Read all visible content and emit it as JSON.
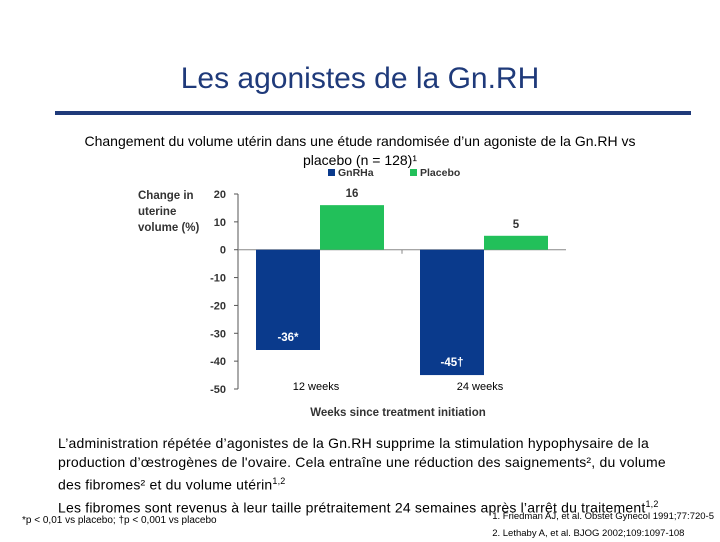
{
  "slide": {
    "title": "Les agonistes de la Gn.RH",
    "subtitle": "Changement du volume utérin dans une étude randomisée d’un agoniste de la Gn.RH vs placebo (n = 128)¹"
  },
  "chart_data": {
    "type": "bar",
    "categories": [
      "12 weeks",
      "24 weeks"
    ],
    "series": [
      {
        "name": "GnRHa",
        "values": [
          -36,
          -45
        ],
        "labels": [
          "-36*",
          "-45†"
        ],
        "color": "#0a3a8c"
      },
      {
        "name": "Placebo",
        "values": [
          16,
          5
        ],
        "labels": [
          "16",
          "5"
        ],
        "color": "#22c05a"
      }
    ],
    "ylabel_lines": [
      "Change in",
      "uterine",
      "volume (%)"
    ],
    "xlabel": "Weeks since treatment initiation",
    "ylim": [
      -50,
      20
    ],
    "yticks": [
      20,
      10,
      0,
      -10,
      -20,
      -30,
      -40,
      -50
    ],
    "legend_position": "top",
    "grid": false
  },
  "body": {
    "line1": "L’administration répétée d’agonistes de la Gn.RH supprime la stimulation hypophysaire de la",
    "line2": "production d’œstrogènes de l'ovaire. Cela entraîne une réduction des saignements², du volume",
    "line3_a": "des fibromes²",
    "line3_b": " et du volume utérin",
    "line3_sup": "1,2",
    "line4_a": "Les fibromes sont revenus à leur taille prétraitement  24 semaines après l’arrêt du traitement",
    "line4_sup": "1,2"
  },
  "footnote": "*p < 0,01 vs placebo; †p < 0,001 vs placebo",
  "references": [
    "1.  Friedman AJ, et al. Obstet Gynecol 1991;77:720-5",
    "2.  Lethaby A, et al. BJOG 2002;109:1097-108"
  ]
}
